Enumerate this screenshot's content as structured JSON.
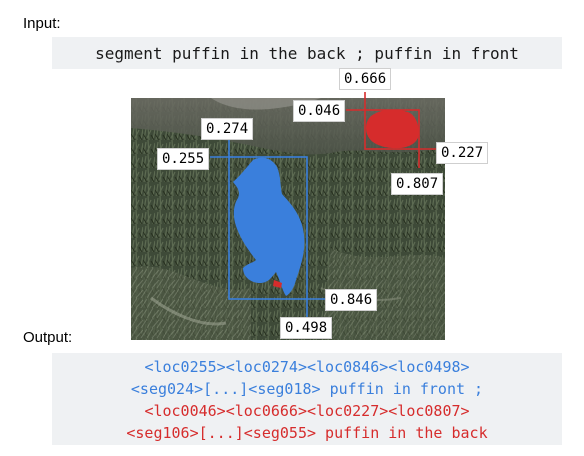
{
  "input": {
    "heading": "Input:",
    "prompt": "segment puffin in the back ; puffin in front"
  },
  "output": {
    "heading": "Output:",
    "lines": [
      "<loc0255><loc0274><loc0846><loc0498>",
      "<seg024>[...]<seg018> puffin in front ;",
      "<loc0046><loc0666><loc0227><loc0807>",
      "<seg106>[...]<seg055> puffin in the back"
    ]
  },
  "annotations": {
    "front": {
      "color": "#3a7fdc",
      "labels": {
        "top": "0.274",
        "left": "0.255",
        "bottom_right": "0.846",
        "bottom": "0.498"
      }
    },
    "back": {
      "color": "#d62c2c",
      "labels": {
        "top": "0.666",
        "left": "0.046",
        "right": "0.227",
        "bottom": "0.807"
      }
    }
  }
}
